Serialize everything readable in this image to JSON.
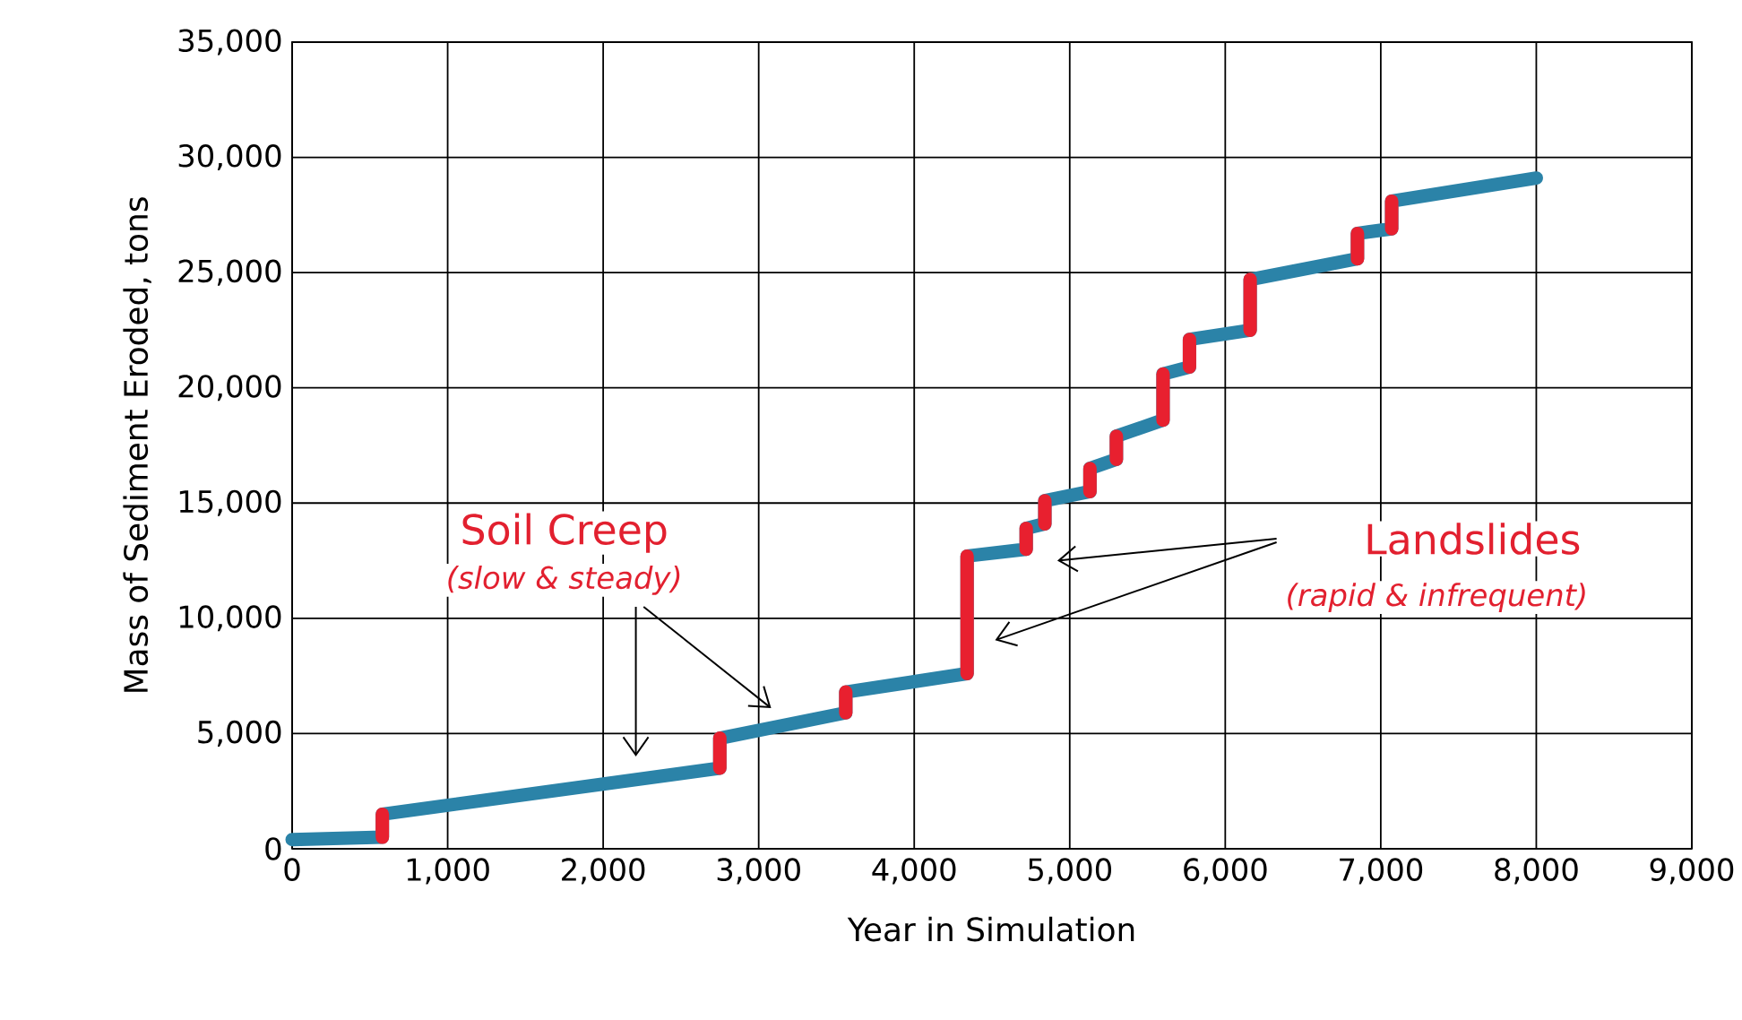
{
  "chart_data": {
    "type": "line",
    "xlabel": "Year in Simulation",
    "ylabel": "Mass of Sediment Eroded, tons",
    "xlim": [
      0,
      9000
    ],
    "ylim": [
      0,
      35000
    ],
    "xticks": [
      0,
      {
        "value": 1000,
        "label": "1,000"
      },
      {
        "value": 2000,
        "label": "2,000"
      },
      {
        "value": 3000,
        "label": "3,000"
      },
      {
        "value": 4000,
        "label": "4,000"
      },
      {
        "value": 5000,
        "label": "5,000"
      },
      {
        "value": 6000,
        "label": "6,000"
      },
      {
        "value": 7000,
        "label": "7,000"
      },
      {
        "value": 8000,
        "label": "8,000"
      },
      {
        "value": 9000,
        "label": "9,000"
      }
    ],
    "yticks": [
      0,
      {
        "value": 5000,
        "label": "5,000"
      },
      {
        "value": 10000,
        "label": "10,000"
      },
      {
        "value": 15000,
        "label": "15,000"
      },
      {
        "value": 20000,
        "label": "20,000"
      },
      {
        "value": 25000,
        "label": "25,000"
      },
      {
        "value": 30000,
        "label": "30,000"
      },
      {
        "value": 35000,
        "label": "35,000"
      }
    ],
    "grid": true,
    "marker": "none",
    "line_style": "solid",
    "series": [
      {
        "color": "#2b83a8",
        "x": [
          0,
          580,
          580,
          2750,
          2750,
          3560,
          3560,
          4340,
          4340,
          4720,
          4720,
          4840,
          4840,
          5130,
          5130,
          5300,
          5300,
          5600,
          5600,
          5770,
          5770,
          6160,
          6160,
          6850,
          6850,
          7070,
          7070,
          8000
        ],
        "values": [
          400,
          500,
          1500,
          3500,
          4800,
          5900,
          6800,
          7600,
          12700,
          13000,
          13900,
          14100,
          15100,
          15500,
          16500,
          16900,
          17900,
          18600,
          20600,
          20900,
          22100,
          22500,
          24700,
          25600,
          26700,
          26900,
          28100,
          29100
        ]
      },
      {
        "color": "#e8202f",
        "x": [
          580,
          580
        ],
        "values": [
          500,
          1500
        ]
      },
      {
        "color": "#e8202f",
        "x": [
          2750,
          2750
        ],
        "values": [
          3500,
          4800
        ]
      },
      {
        "color": "#e8202f",
        "x": [
          3560,
          3560
        ],
        "values": [
          5900,
          6800
        ]
      },
      {
        "color": "#e8202f",
        "x": [
          4340,
          4340
        ],
        "values": [
          7600,
          12700
        ]
      },
      {
        "color": "#e8202f",
        "x": [
          4720,
          4720
        ],
        "values": [
          13000,
          13900
        ]
      },
      {
        "color": "#e8202f",
        "x": [
          4840,
          4840
        ],
        "values": [
          14100,
          15100
        ]
      },
      {
        "color": "#e8202f",
        "x": [
          5130,
          5130
        ],
        "values": [
          15500,
          16500
        ]
      },
      {
        "color": "#e8202f",
        "x": [
          5300,
          5300
        ],
        "values": [
          16900,
          17900
        ]
      },
      {
        "color": "#e8202f",
        "x": [
          5600,
          5600
        ],
        "values": [
          18600,
          20600
        ]
      },
      {
        "color": "#e8202f",
        "x": [
          5770,
          5770
        ],
        "values": [
          20900,
          22100
        ]
      },
      {
        "color": "#e8202f",
        "x": [
          6160,
          6160
        ],
        "values": [
          22500,
          24700
        ]
      },
      {
        "color": "#e8202f",
        "x": [
          6850,
          6850
        ],
        "values": [
          25600,
          26700
        ]
      },
      {
        "color": "#e8202f",
        "x": [
          7070,
          7070
        ],
        "values": [
          26900,
          28100
        ]
      }
    ],
    "annotations": [
      "Soil Creep",
      "(slow & steady)",
      "Landslides",
      "(rapid & infrequent)"
    ]
  }
}
